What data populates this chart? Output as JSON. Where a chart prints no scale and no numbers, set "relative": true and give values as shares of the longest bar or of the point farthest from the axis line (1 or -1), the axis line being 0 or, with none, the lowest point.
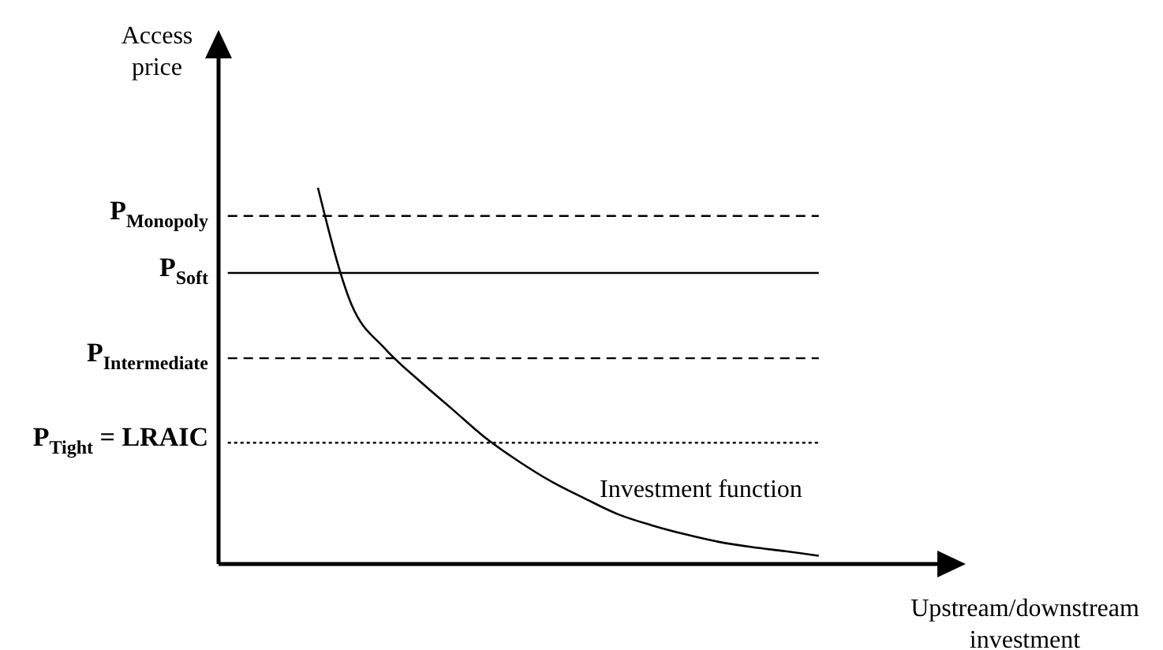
{
  "chart_data": {
    "type": "line",
    "relative": true,
    "xlabel": "Upstream/downstream investment",
    "ylabel": "Access price",
    "categories": [
      null,
      null,
      null,
      null,
      null,
      null,
      null,
      null,
      null,
      null,
      null,
      null,
      null,
      null,
      null,
      null,
      null,
      null,
      null,
      null,
      null,
      null,
      null
    ],
    "series": [
      {
        "color": "#000000",
        "values": [
          null,
          null,
          null,
          1,
          0.69,
          0.572,
          0.489,
          0.412,
          0.335,
          0.272,
          0.217,
          0.172,
          0.13,
          0.101,
          0.077,
          0.057,
          0.043,
          0.032,
          0.02,
          null,
          null,
          null,
          null
        ]
      }
    ],
    "ref_lines": [
      {
        "axis": "y",
        "value": 0.925,
        "label": "P$_{Monopoly}$",
        "line_style": "dashed",
        "color": "#000000"
      },
      {
        "axis": "y",
        "value": 0.773,
        "label": "P$_{Soft}$",
        "line_style": "solid",
        "color": "#000000"
      },
      {
        "axis": "y",
        "value": 0.546,
        "label": "P$_{Intermediate}$",
        "line_style": "dashed",
        "color": "#000000"
      },
      {
        "axis": "y",
        "value": 0.321,
        "label": "P$_{Tight}$ = LRAIC",
        "line_style": "dotted",
        "color": "#000000"
      }
    ],
    "annotations": [
      "Investment function"
    ]
  }
}
